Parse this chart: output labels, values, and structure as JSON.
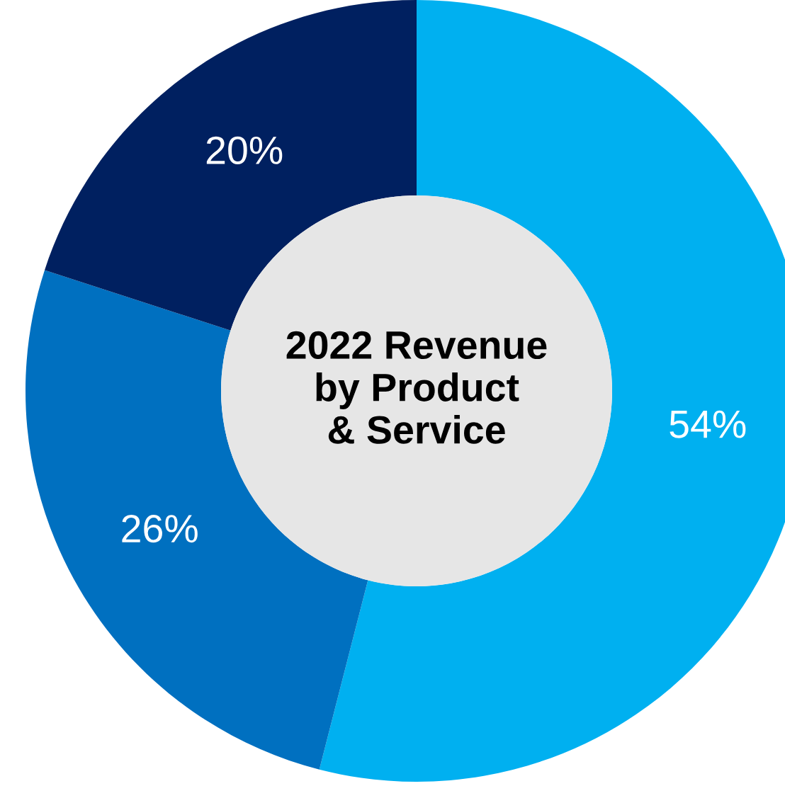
{
  "chart_data": {
    "type": "donut",
    "title": "2022 Revenue\nby Product\n& Service",
    "categories": [
      null,
      null,
      null
    ],
    "values": [
      54,
      26,
      20
    ],
    "colors": [
      "#00b0f0",
      "#0070c0",
      "#002060"
    ],
    "value_labels": [
      "54%",
      "26%",
      "20%"
    ]
  }
}
